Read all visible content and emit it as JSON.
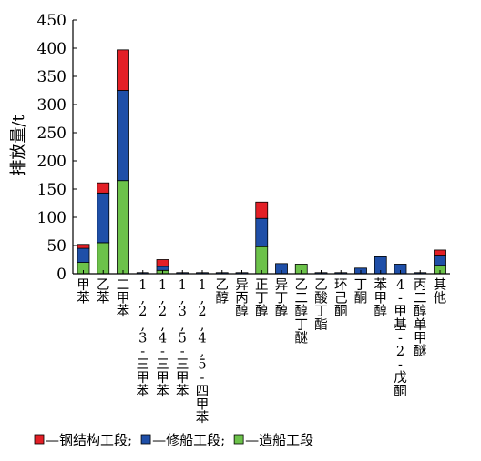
{
  "chart_data": {
    "type": "bar",
    "stacked": true,
    "ylabel": "排放量/t",
    "xlabel": "",
    "ylim": [
      0,
      450
    ],
    "yticks": [
      0,
      50,
      100,
      150,
      200,
      250,
      300,
      350,
      400,
      450
    ],
    "grid": false,
    "legend_position": "bottom",
    "categories": [
      "甲苯",
      "乙苯",
      "二甲苯",
      "1,2,3-三甲苯",
      "1,2,4-三甲苯",
      "1,3,5-三甲苯",
      "1,2,4,5-四甲苯",
      "乙醇",
      "异丙醇",
      "正丁醇",
      "异丁醇",
      "乙二醇丁醚",
      "乙酸丁酯",
      "环己酮",
      "丁酮",
      "苯甲醇",
      "4-甲基-2-戊酮",
      "丙二醇单甲醚",
      "其他"
    ],
    "series": [
      {
        "name": "造船工段",
        "color": "#6cc24a",
        "values": [
          20,
          55,
          165,
          0,
          6,
          0,
          0,
          0,
          0,
          48,
          0,
          17,
          0,
          0,
          0,
          0,
          0,
          0,
          15
        ]
      },
      {
        "name": "修船工段",
        "color": "#1f4fa8",
        "values": [
          25,
          88,
          160,
          2,
          7,
          2,
          2,
          2,
          2,
          50,
          18,
          0,
          2,
          2,
          10,
          30,
          17,
          2,
          18
        ]
      },
      {
        "name": "钢结构工段",
        "color": "#e31f26",
        "values": [
          7,
          18,
          72,
          0,
          12,
          0,
          0,
          0,
          0,
          29,
          0,
          0,
          0,
          0,
          0,
          0,
          0,
          0,
          9
        ]
      }
    ],
    "legend": [
      {
        "label": "—钢结构工段;",
        "color": "#e31f26"
      },
      {
        "label": "—修船工段;",
        "color": "#1f4fa8"
      },
      {
        "label": "—造船工段",
        "color": "#6cc24a"
      }
    ]
  }
}
